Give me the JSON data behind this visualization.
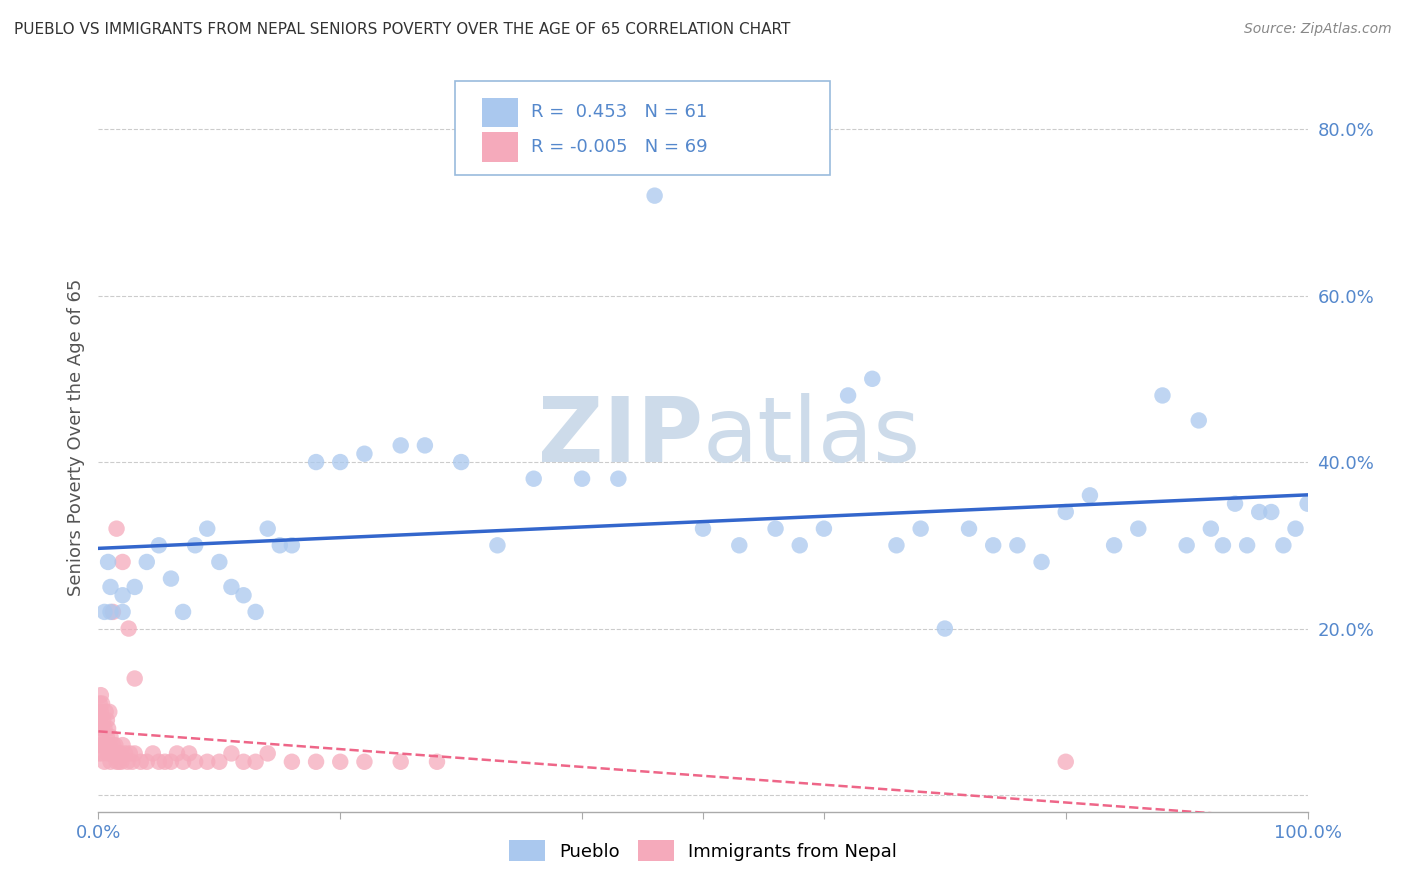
{
  "title": "PUEBLO VS IMMIGRANTS FROM NEPAL SENIORS POVERTY OVER THE AGE OF 65 CORRELATION CHART",
  "source": "Source: ZipAtlas.com",
  "ylabel": "Seniors Poverty Over the Age of 65",
  "xlim": [
    0.0,
    1.0
  ],
  "ylim": [
    -0.02,
    0.88
  ],
  "pueblo_R": 0.453,
  "pueblo_N": 61,
  "nepal_R": -0.005,
  "nepal_N": 69,
  "pueblo_color": "#aac8ee",
  "nepal_color": "#f5aabb",
  "pueblo_line_color": "#3366cc",
  "nepal_line_color": "#ee6688",
  "tick_label_color": "#5588cc",
  "background_color": "#ffffff",
  "watermark_color": "#c8d8e8",
  "legend_pueblo_label": "Pueblo",
  "legend_nepal_label": "Immigrants from Nepal",
  "pueblo_x": [
    0.005,
    0.008,
    0.01,
    0.01,
    0.02,
    0.02,
    0.03,
    0.04,
    0.05,
    0.06,
    0.07,
    0.08,
    0.09,
    0.1,
    0.11,
    0.12,
    0.13,
    0.14,
    0.15,
    0.16,
    0.18,
    0.2,
    0.22,
    0.25,
    0.27,
    0.3,
    0.33,
    0.36,
    0.4,
    0.43,
    0.46,
    0.5,
    0.53,
    0.56,
    0.58,
    0.6,
    0.62,
    0.64,
    0.66,
    0.68,
    0.7,
    0.72,
    0.74,
    0.76,
    0.78,
    0.8,
    0.82,
    0.84,
    0.86,
    0.88,
    0.9,
    0.92,
    0.94,
    0.96,
    0.97,
    0.98,
    0.99,
    1.0,
    0.95,
    0.93,
    0.91
  ],
  "pueblo_y": [
    0.22,
    0.28,
    0.25,
    0.22,
    0.24,
    0.22,
    0.25,
    0.28,
    0.3,
    0.26,
    0.22,
    0.3,
    0.32,
    0.28,
    0.25,
    0.24,
    0.22,
    0.32,
    0.3,
    0.3,
    0.4,
    0.4,
    0.41,
    0.42,
    0.42,
    0.4,
    0.3,
    0.38,
    0.38,
    0.38,
    0.72,
    0.32,
    0.3,
    0.32,
    0.3,
    0.32,
    0.48,
    0.5,
    0.3,
    0.32,
    0.2,
    0.32,
    0.3,
    0.3,
    0.28,
    0.34,
    0.36,
    0.3,
    0.32,
    0.48,
    0.3,
    0.32,
    0.35,
    0.34,
    0.34,
    0.3,
    0.32,
    0.35,
    0.3,
    0.3,
    0.45
  ],
  "nepal_x": [
    0.0,
    0.0,
    0.0,
    0.001,
    0.001,
    0.001,
    0.002,
    0.002,
    0.002,
    0.003,
    0.003,
    0.003,
    0.004,
    0.004,
    0.005,
    0.005,
    0.006,
    0.006,
    0.007,
    0.007,
    0.008,
    0.008,
    0.009,
    0.009,
    0.01,
    0.01,
    0.011,
    0.012,
    0.013,
    0.014,
    0.015,
    0.016,
    0.017,
    0.018,
    0.019,
    0.02,
    0.022,
    0.024,
    0.026,
    0.028,
    0.03,
    0.035,
    0.04,
    0.045,
    0.05,
    0.055,
    0.06,
    0.065,
    0.07,
    0.075,
    0.08,
    0.09,
    0.1,
    0.11,
    0.12,
    0.13,
    0.14,
    0.16,
    0.18,
    0.2,
    0.22,
    0.25,
    0.28,
    0.02,
    0.015,
    0.012,
    0.03,
    0.025,
    0.8
  ],
  "nepal_y": [
    0.05,
    0.08,
    0.1,
    0.06,
    0.09,
    0.11,
    0.07,
    0.1,
    0.12,
    0.05,
    0.08,
    0.11,
    0.06,
    0.09,
    0.04,
    0.08,
    0.1,
    0.06,
    0.07,
    0.09,
    0.05,
    0.08,
    0.06,
    0.1,
    0.04,
    0.07,
    0.05,
    0.06,
    0.05,
    0.06,
    0.04,
    0.05,
    0.04,
    0.05,
    0.04,
    0.06,
    0.05,
    0.04,
    0.05,
    0.04,
    0.05,
    0.04,
    0.04,
    0.05,
    0.04,
    0.04,
    0.04,
    0.05,
    0.04,
    0.05,
    0.04,
    0.04,
    0.04,
    0.05,
    0.04,
    0.04,
    0.05,
    0.04,
    0.04,
    0.04,
    0.04,
    0.04,
    0.04,
    0.28,
    0.32,
    0.22,
    0.14,
    0.2,
    0.04
  ]
}
